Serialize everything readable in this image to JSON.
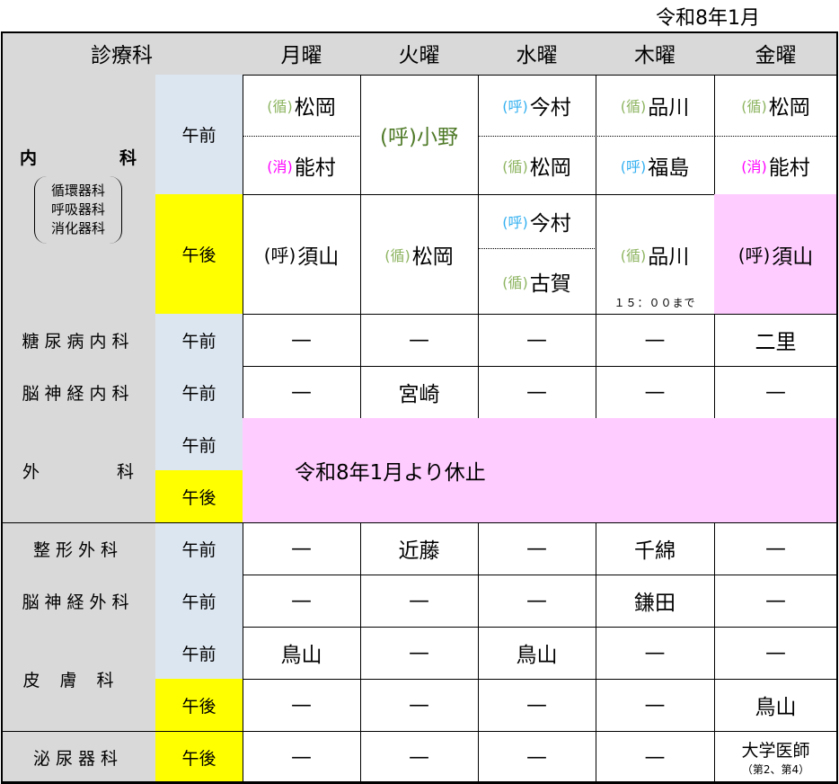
{
  "title": "令和8年1月",
  "header": {
    "dept": "診療科",
    "days": [
      "月曜",
      "火曜",
      "水曜",
      "木曜",
      "金曜"
    ]
  },
  "session": {
    "am": "午前",
    "pm": "午後"
  },
  "naika": {
    "name_left": "内",
    "name_right": "科",
    "subs": [
      "循環器科",
      "呼吸器科",
      "消化器科"
    ],
    "am": {
      "mon": [
        {
          "prefix": "(循)",
          "name": "松岡"
        },
        {
          "prefix": "(消)",
          "name": "能村"
        }
      ],
      "tue": {
        "text": "(呼)小野"
      },
      "wed": [
        {
          "prefix": "(呼)",
          "name": "今村"
        },
        {
          "prefix": "(循)",
          "name": "松岡"
        }
      ],
      "thu": [
        {
          "prefix": "(循)",
          "name": "品川"
        },
        {
          "prefix": "(呼)",
          "name": "福島"
        }
      ],
      "fri": [
        {
          "prefix": "(循)",
          "name": "松岡"
        },
        {
          "prefix": "(消)",
          "name": "能村"
        }
      ]
    },
    "pm": {
      "mon": {
        "prefix": "(呼)",
        "name": "須山"
      },
      "tue": {
        "prefix": "(循)",
        "name": "松岡"
      },
      "wed": [
        {
          "prefix": "(呼)",
          "name": "今村"
        },
        {
          "prefix": "(循)",
          "name": "古賀"
        }
      ],
      "thu": {
        "prefix": "(循)",
        "name": "品川",
        "note": "１５：００まで"
      },
      "fri": {
        "prefix": "(呼)",
        "name": "須山"
      }
    }
  },
  "rows": [
    {
      "dept": "糖尿病内科",
      "cells": [
        "—",
        "—",
        "—",
        "—",
        "二里"
      ]
    },
    {
      "dept": "脳神経内科",
      "cells": [
        "—",
        "宮崎",
        "—",
        "—",
        "—"
      ]
    },
    {
      "dept": "整形外科",
      "cells": [
        "—",
        "近藤",
        "—",
        "千綿",
        "—"
      ]
    },
    {
      "dept": "脳神経外科",
      "cells": [
        "—",
        "—",
        "—",
        "鎌田",
        "—"
      ]
    },
    {
      "dept": "皮膚科",
      "am": [
        "鳥山",
        "—",
        "鳥山",
        "—",
        "—"
      ],
      "pm": [
        "—",
        "—",
        "—",
        "—",
        "鳥山"
      ]
    },
    {
      "dept": "泌尿器科",
      "cells": [
        "—",
        "—",
        "—",
        "—",
        "大学医師"
      ],
      "note": "（第2、第4）"
    }
  ],
  "geka": {
    "dept": "外科",
    "notice": "令和8年1月より休止"
  },
  "colors": {
    "am": "#dce6f1",
    "pm": "#ffff00",
    "closed": "#ffccff",
    "junkanki": "#8db460",
    "kokyuki": "#33b0f0",
    "shokaki": "#ff00ff"
  }
}
